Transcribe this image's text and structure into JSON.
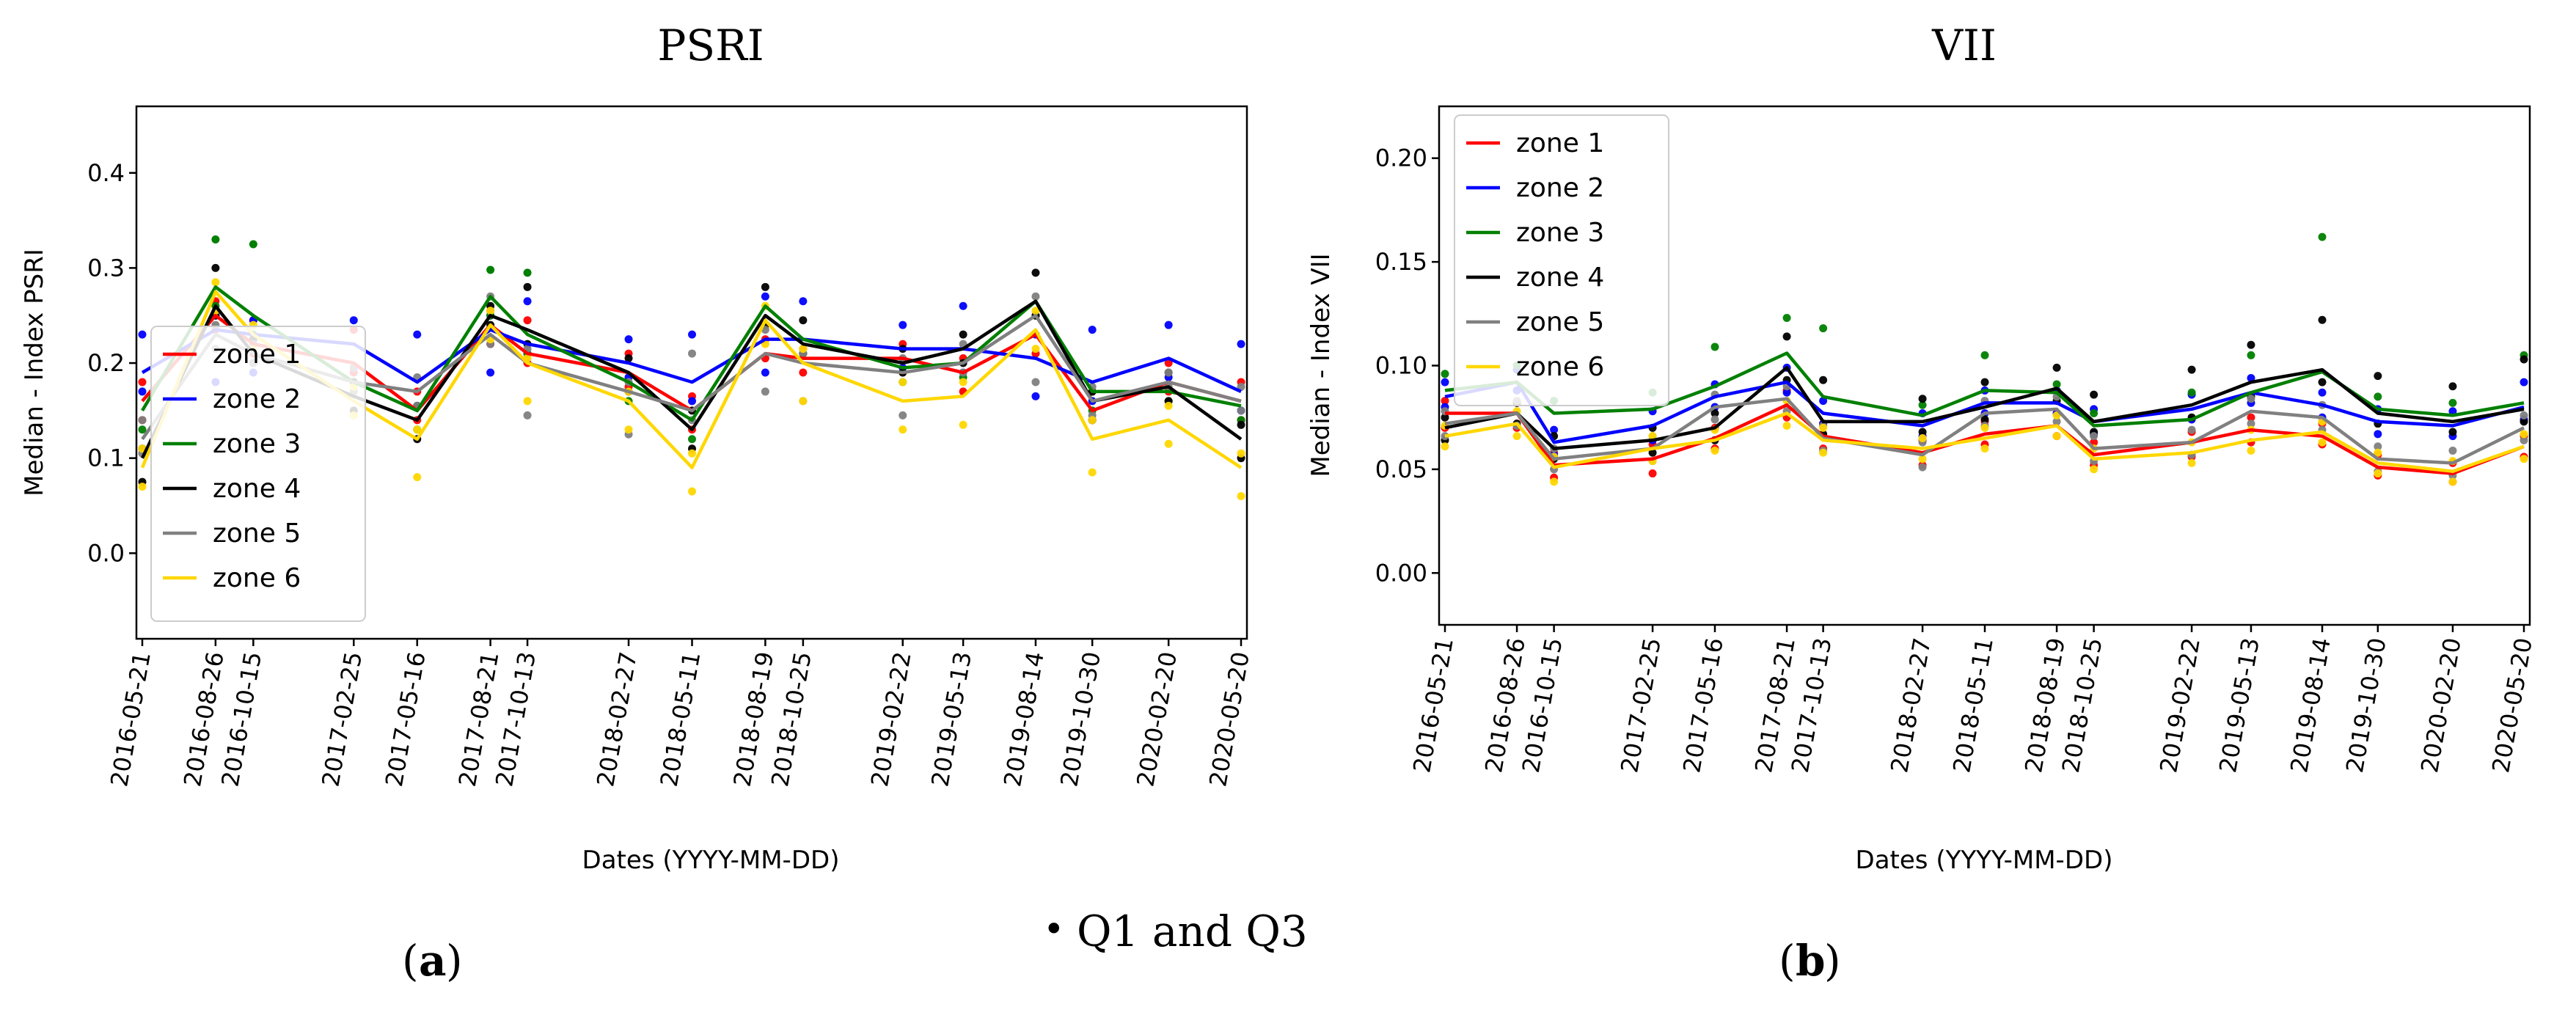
{
  "chart_data": [
    {
      "type": "line",
      "panel_label": "a",
      "title": "PSRI",
      "xlabel": "Dates (YYYY-MM-DD)",
      "ylabel": "Median - Index PSRI",
      "ylim": [
        -0.09,
        0.47
      ],
      "yticks": [
        0.0,
        0.1,
        0.2,
        0.3,
        0.4
      ],
      "ytick_labels": [
        "0.0",
        "0.1",
        "0.2",
        "0.3",
        "0.4"
      ],
      "legend_loc": "lower-left",
      "grid": false,
      "x": [
        0,
        97,
        147,
        280,
        364,
        461,
        510,
        644,
        728,
        825,
        875,
        1007,
        1087,
        1183,
        1258,
        1359,
        1455
      ],
      "xlim": [
        0,
        1455
      ],
      "x_labels": [
        "2016-05-21",
        "2016-08-26",
        "2016-10-15",
        "2017-02-25",
        "2017-05-16",
        "2017-08-21",
        "2017-10-13",
        "2018-02-27",
        "2018-05-11",
        "2018-08-19",
        "2018-10-25",
        "2019-02-22",
        "2019-05-13",
        "2019-08-14",
        "2019-10-30",
        "2020-02-20",
        "2020-05-20"
      ],
      "series": [
        {
          "name": "zone 1",
          "color": "#ff0000",
          "values": [
            0.16,
            0.25,
            0.22,
            0.2,
            0.15,
            0.24,
            0.21,
            0.19,
            0.15,
            0.21,
            0.205,
            0.205,
            0.19,
            0.23,
            0.15,
            0.18,
            0.16
          ]
        },
        {
          "name": "zone 2",
          "color": "#0000ff",
          "values": [
            0.19,
            0.235,
            0.23,
            0.22,
            0.18,
            0.235,
            0.22,
            0.2,
            0.18,
            0.225,
            0.225,
            0.215,
            0.215,
            0.205,
            0.18,
            0.205,
            0.17
          ]
        },
        {
          "name": "zone 3",
          "color": "#008000",
          "values": [
            0.15,
            0.28,
            0.25,
            0.18,
            0.15,
            0.27,
            0.23,
            0.18,
            0.14,
            0.26,
            0.225,
            0.195,
            0.2,
            0.265,
            0.17,
            0.17,
            0.155
          ]
        },
        {
          "name": "zone 4",
          "color": "#000000",
          "values": [
            0.1,
            0.26,
            0.21,
            0.165,
            0.14,
            0.25,
            0.235,
            0.19,
            0.13,
            0.25,
            0.22,
            0.2,
            0.215,
            0.265,
            0.16,
            0.175,
            0.12
          ]
        },
        {
          "name": "zone 5",
          "color": "#808080",
          "values": [
            0.12,
            0.23,
            0.21,
            0.18,
            0.17,
            0.23,
            0.2,
            0.17,
            0.15,
            0.21,
            0.2,
            0.19,
            0.2,
            0.25,
            0.16,
            0.18,
            0.16
          ]
        },
        {
          "name": "zone 6",
          "color": "#ffd700",
          "values": [
            0.09,
            0.275,
            0.23,
            0.16,
            0.12,
            0.24,
            0.2,
            0.16,
            0.09,
            0.245,
            0.2,
            0.16,
            0.165,
            0.235,
            0.12,
            0.14,
            0.09
          ]
        }
      ],
      "q_points": [
        {
          "zone": "zone 1",
          "q1": [
            0.14,
            0.235,
            0.21,
            0.19,
            0.14,
            0.22,
            0.2,
            0.175,
            0.13,
            0.205,
            0.19,
            0.19,
            0.17,
            0.21,
            0.14,
            0.17,
            0.14
          ],
          "q3": [
            0.18,
            0.265,
            0.245,
            0.235,
            0.17,
            0.255,
            0.245,
            0.21,
            0.165,
            0.225,
            0.215,
            0.22,
            0.205,
            0.25,
            0.17,
            0.2,
            0.18
          ]
        },
        {
          "zone": "zone 2",
          "q1": [
            0.17,
            0.18,
            0.19,
            0.195,
            0.155,
            0.19,
            0.21,
            0.185,
            0.16,
            0.19,
            0.21,
            0.195,
            0.19,
            0.165,
            0.16,
            0.185,
            0.15
          ],
          "q3": [
            0.23,
            0.25,
            0.245,
            0.245,
            0.23,
            0.25,
            0.265,
            0.225,
            0.23,
            0.27,
            0.265,
            0.24,
            0.26,
            0.23,
            0.235,
            0.24,
            0.22
          ]
        },
        {
          "zone": "zone 3",
          "q1": [
            0.13,
            0.26,
            0.23,
            0.17,
            0.13,
            0.25,
            0.21,
            0.16,
            0.12,
            0.24,
            0.21,
            0.18,
            0.185,
            0.25,
            0.15,
            0.16,
            0.14
          ]
        },
        {
          "zone": "zone 4",
          "q1": [
            0.075,
            0.25,
            0.2,
            0.15,
            0.12,
            0.24,
            0.22,
            0.17,
            0.11,
            0.24,
            0.21,
            0.19,
            0.2,
            0.25,
            0.14,
            0.16,
            0.1
          ],
          "q3": [
            0.11,
            0.3,
            0.225,
            0.18,
            0.155,
            0.26,
            0.28,
            0.205,
            0.15,
            0.28,
            0.245,
            0.215,
            0.23,
            0.295,
            0.17,
            0.19,
            0.135
          ]
        },
        {
          "zone": "zone 5",
          "q1": [
            0.105,
            0.215,
            0.2,
            0.17,
            0.155,
            0.22,
            0.145,
            0.125,
            0.14,
            0.17,
            0.16,
            0.145,
            0.19,
            0.18,
            0.145,
            0.175,
            0.15
          ],
          "q3": [
            0.14,
            0.24,
            0.22,
            0.195,
            0.185,
            0.27,
            0.215,
            0.18,
            0.21,
            0.235,
            0.21,
            0.205,
            0.22,
            0.27,
            0.175,
            0.19,
            0.175
          ]
        },
        {
          "zone": "zone 6",
          "q1": [
            0.07,
            0.255,
            0.215,
            0.145,
            0.08,
            0.225,
            0.16,
            0.13,
            0.065,
            0.22,
            0.16,
            0.13,
            0.135,
            0.215,
            0.085,
            0.115,
            0.06
          ],
          "q3": [
            0.11,
            0.285,
            0.24,
            0.175,
            0.13,
            0.255,
            0.205,
            0.17,
            0.105,
            0.26,
            0.215,
            0.18,
            0.18,
            0.255,
            0.14,
            0.155,
            0.105
          ]
        }
      ],
      "outliers": [
        {
          "zone": "zone 3",
          "points": [
            [
              97,
              0.33
            ],
            [
              147,
              0.325
            ],
            [
              461,
              0.298
            ],
            [
              510,
              0.295
            ]
          ]
        }
      ]
    },
    {
      "type": "line",
      "panel_label": "b",
      "title": "VII",
      "xlabel": "Dates (YYYY-MM-DD)",
      "ylabel": "Median - Index VII",
      "ylim": [
        -0.025,
        0.225
      ],
      "yticks": [
        0.0,
        0.05,
        0.1,
        0.15,
        0.2
      ],
      "ytick_labels": [
        "0.00",
        "0.05",
        "0.10",
        "0.15",
        "0.20"
      ],
      "legend_loc": "upper-left",
      "grid": false,
      "x": [
        0,
        97,
        147,
        280,
        364,
        461,
        510,
        644,
        728,
        825,
        875,
        1007,
        1087,
        1183,
        1258,
        1359,
        1455
      ],
      "xlim": [
        0,
        1455
      ],
      "x_labels": [
        "2016-05-21",
        "2016-08-26",
        "2016-10-15",
        "2017-02-25",
        "2017-05-16",
        "2017-08-21",
        "2017-10-13",
        "2018-02-27",
        "2018-05-11",
        "2018-08-19",
        "2018-10-25",
        "2019-02-22",
        "2019-05-13",
        "2019-08-14",
        "2019-10-30",
        "2020-02-20",
        "2020-05-20"
      ],
      "series": [
        {
          "name": "zone 1",
          "color": "#ff0000",
          "values": [
            0.077,
            0.077,
            0.052,
            0.055,
            0.065,
            0.081,
            0.066,
            0.058,
            0.067,
            0.071,
            0.057,
            0.063,
            0.069,
            0.066,
            0.051,
            0.048,
            0.061
          ]
        },
        {
          "name": "zone 2",
          "color": "#0000ff",
          "values": [
            0.085,
            0.092,
            0.063,
            0.071,
            0.085,
            0.092,
            0.077,
            0.071,
            0.082,
            0.082,
            0.073,
            0.079,
            0.087,
            0.081,
            0.073,
            0.071,
            0.08
          ]
        },
        {
          "name": "zone 3",
          "color": "#008000",
          "values": [
            0.088,
            0.092,
            0.077,
            0.079,
            0.09,
            0.106,
            0.085,
            0.076,
            0.088,
            0.087,
            0.071,
            0.074,
            0.087,
            0.097,
            0.079,
            0.076,
            0.082
          ]
        },
        {
          "name": "zone 4",
          "color": "#000000",
          "values": [
            0.07,
            0.077,
            0.06,
            0.064,
            0.07,
            0.099,
            0.073,
            0.073,
            0.08,
            0.089,
            0.073,
            0.081,
            0.092,
            0.098,
            0.077,
            0.073,
            0.079
          ]
        },
        {
          "name": "zone 5",
          "color": "#808080",
          "values": [
            0.072,
            0.077,
            0.055,
            0.06,
            0.08,
            0.084,
            0.065,
            0.057,
            0.077,
            0.079,
            0.06,
            0.063,
            0.078,
            0.075,
            0.055,
            0.053,
            0.07
          ]
        },
        {
          "name": "zone 6",
          "color": "#ffd700",
          "values": [
            0.066,
            0.072,
            0.051,
            0.06,
            0.064,
            0.077,
            0.064,
            0.06,
            0.065,
            0.071,
            0.055,
            0.058,
            0.064,
            0.068,
            0.053,
            0.049,
            0.061
          ]
        }
      ],
      "q_points": [
        {
          "zone": "zone 1",
          "q1": [
            0.07,
            0.07,
            0.046,
            0.048,
            0.06,
            0.075,
            0.06,
            0.052,
            0.062,
            0.066,
            0.052,
            0.056,
            0.063,
            0.062,
            0.047,
            0.044,
            0.056
          ],
          "q3": [
            0.083,
            0.082,
            0.058,
            0.062,
            0.07,
            0.088,
            0.072,
            0.064,
            0.073,
            0.077,
            0.063,
            0.068,
            0.075,
            0.072,
            0.057,
            0.053,
            0.066
          ]
        },
        {
          "zone": "zone 2",
          "q1": [
            0.08,
            0.088,
            0.057,
            0.064,
            0.08,
            0.087,
            0.072,
            0.066,
            0.077,
            0.077,
            0.067,
            0.074,
            0.082,
            0.075,
            0.067,
            0.066,
            0.074
          ],
          "q3": [
            0.092,
            0.098,
            0.069,
            0.078,
            0.091,
            0.099,
            0.083,
            0.077,
            0.088,
            0.088,
            0.079,
            0.086,
            0.094,
            0.087,
            0.079,
            0.078,
            0.092
          ]
        },
        {
          "zone": "zone 3",
          "q3": [
            0.096,
            0.1,
            0.083,
            0.087,
            0.109,
            0.123,
            0.118,
            0.081,
            0.105,
            0.091,
            0.077,
            0.087,
            0.105,
            0.162,
            0.085,
            0.082,
            0.105
          ]
        },
        {
          "zone": "zone 4",
          "q1": [
            0.064,
            0.072,
            0.055,
            0.058,
            0.064,
            0.093,
            0.067,
            0.068,
            0.074,
            0.083,
            0.068,
            0.075,
            0.085,
            0.092,
            0.072,
            0.068,
            0.073
          ],
          "q3": [
            0.075,
            0.082,
            0.066,
            0.07,
            0.077,
            0.114,
            0.093,
            0.084,
            0.092,
            0.099,
            0.086,
            0.098,
            0.11,
            0.122,
            0.095,
            0.09,
            0.103
          ]
        },
        {
          "zone": "zone 5",
          "q1": [
            0.066,
            0.071,
            0.05,
            0.054,
            0.074,
            0.078,
            0.059,
            0.051,
            0.071,
            0.073,
            0.054,
            0.057,
            0.072,
            0.069,
            0.049,
            0.047,
            0.064
          ],
          "q3": [
            0.078,
            0.083,
            0.06,
            0.066,
            0.086,
            0.09,
            0.071,
            0.063,
            0.083,
            0.085,
            0.066,
            0.069,
            0.084,
            0.081,
            0.061,
            0.059,
            0.076
          ]
        },
        {
          "zone": "zone 6",
          "q1": [
            0.061,
            0.066,
            0.044,
            0.054,
            0.059,
            0.071,
            0.058,
            0.055,
            0.06,
            0.066,
            0.05,
            0.053,
            0.059,
            0.063,
            0.048,
            0.044,
            0.055
          ],
          "q3": [
            0.071,
            0.078,
            0.056,
            0.066,
            0.069,
            0.083,
            0.07,
            0.065,
            0.07,
            0.076,
            0.06,
            0.063,
            0.069,
            0.073,
            0.058,
            0.054,
            0.067
          ]
        }
      ],
      "outliers": []
    }
  ],
  "caption": {
    "marker": "•",
    "legend_text": "Q1 and Q3",
    "labels": [
      "a",
      "b"
    ]
  }
}
